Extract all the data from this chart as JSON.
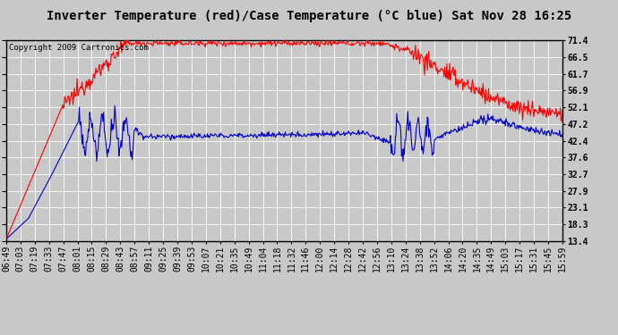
{
  "title": "Inverter Temperature (red)/Case Temperature (°C blue) Sat Nov 28 16:25",
  "copyright": "Copyright 2009 Cartronics.com",
  "ylabel_right_ticks": [
    13.4,
    18.3,
    23.1,
    27.9,
    32.7,
    37.6,
    42.4,
    47.2,
    52.1,
    56.9,
    61.7,
    66.5,
    71.4
  ],
  "ymin": 13.4,
  "ymax": 71.4,
  "x_labels": [
    "06:49",
    "07:03",
    "07:19",
    "07:33",
    "07:47",
    "08:01",
    "08:15",
    "08:29",
    "08:43",
    "08:57",
    "09:11",
    "09:25",
    "09:39",
    "09:53",
    "10:07",
    "10:21",
    "10:35",
    "10:49",
    "11:04",
    "11:18",
    "11:32",
    "11:46",
    "12:00",
    "12:14",
    "12:28",
    "12:42",
    "12:56",
    "13:10",
    "13:24",
    "13:38",
    "13:52",
    "14:06",
    "14:20",
    "14:35",
    "14:49",
    "15:03",
    "15:17",
    "15:31",
    "15:45",
    "15:59"
  ],
  "background_color": "#c8c8c8",
  "plot_bg_color": "#c8c8c8",
  "grid_color": "#ffffff",
  "red_color": "#ff0000",
  "blue_color": "#0000cc",
  "title_fontsize": 10,
  "copyright_fontsize": 6.5,
  "tick_fontsize": 7
}
